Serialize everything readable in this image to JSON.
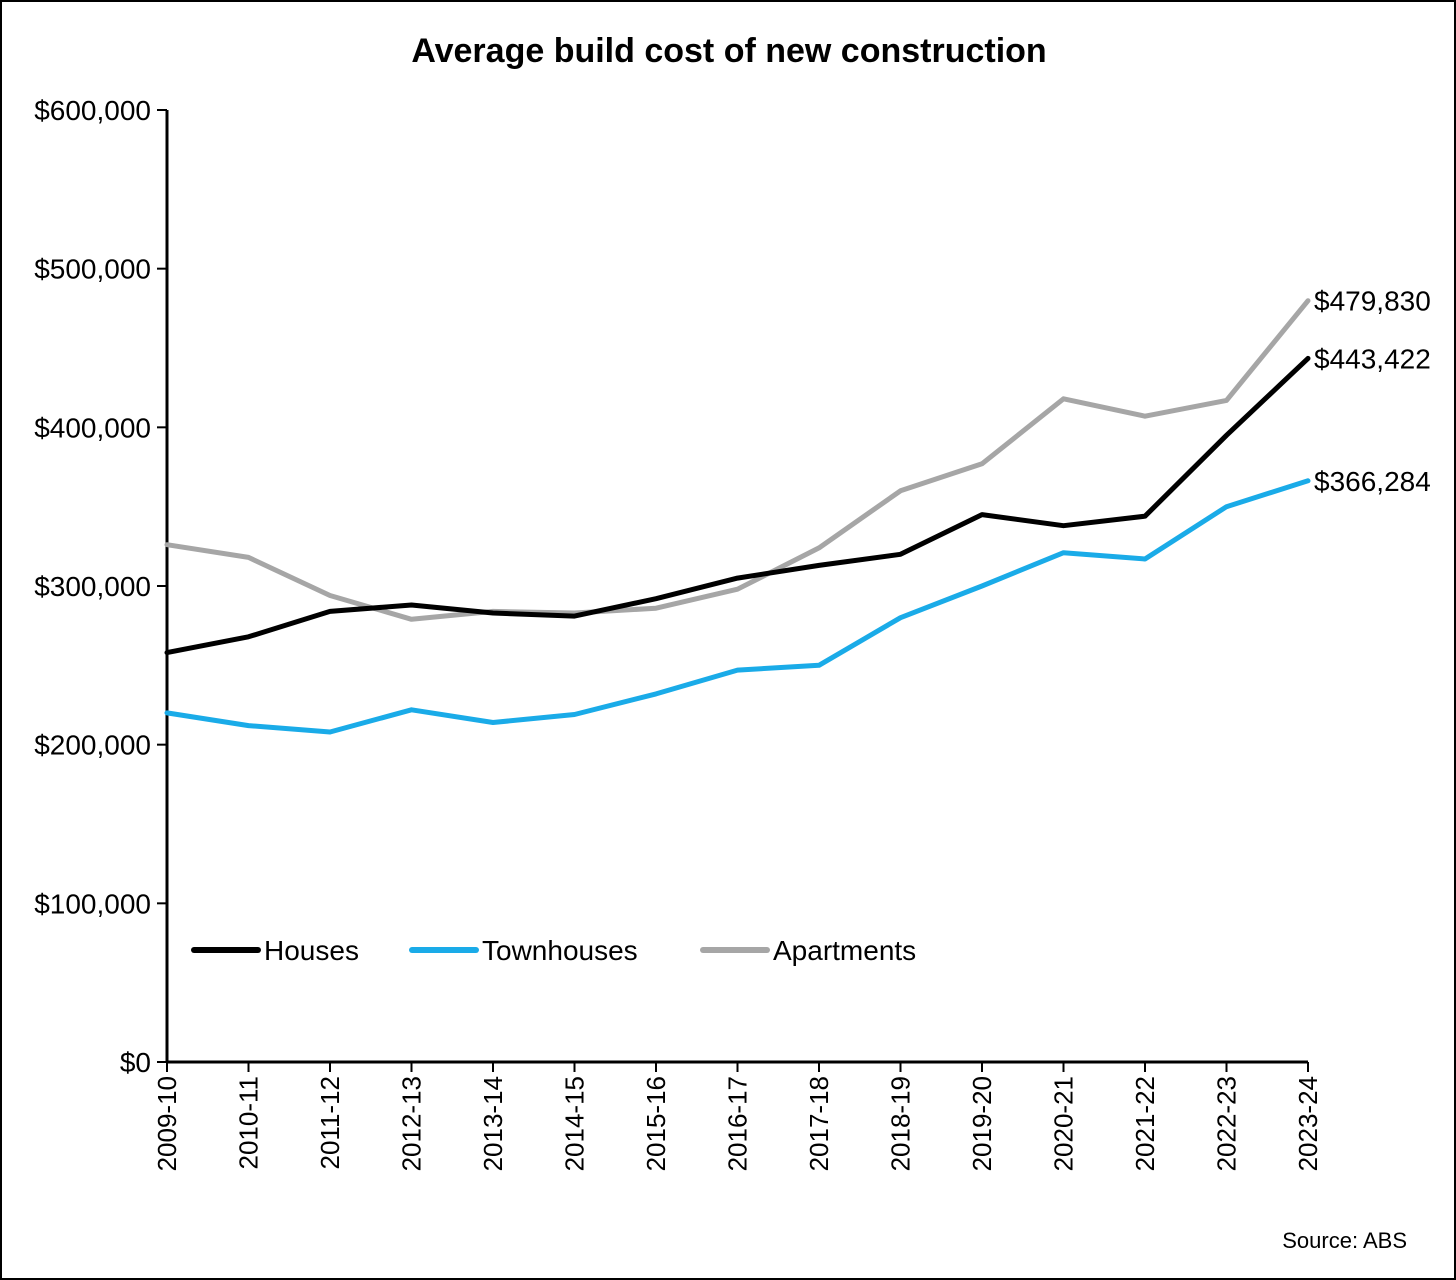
{
  "chart_data": {
    "type": "line",
    "title": "Average build cost of new construction",
    "source": "Source: ABS",
    "categories": [
      "2009-10",
      "2010-11",
      "2011-12",
      "2012-13",
      "2013-14",
      "2014-15",
      "2015-16",
      "2016-17",
      "2017-18",
      "2018-19",
      "2019-20",
      "2020-21",
      "2021-22",
      "2022-23",
      "2023-24"
    ],
    "ylim": [
      0,
      600000
    ],
    "yticks": [
      0,
      100000,
      200000,
      300000,
      400000,
      500000,
      600000
    ],
    "ytick_labels": [
      "$0",
      "$100,000",
      "$200,000",
      "$300,000",
      "$400,000",
      "$500,000",
      "$600,000"
    ],
    "legend_position": "bottom-left",
    "grid": false,
    "series": [
      {
        "name": "Houses",
        "color": "#000000",
        "values": [
          258000,
          268000,
          284000,
          288000,
          283000,
          281000,
          292000,
          305000,
          313000,
          320000,
          345000,
          338000,
          344000,
          395000,
          443422
        ],
        "end_label": "$443,422"
      },
      {
        "name": "Townhouses",
        "color": "#1aabe8",
        "values": [
          220000,
          212000,
          208000,
          222000,
          214000,
          219000,
          232000,
          247000,
          250000,
          280000,
          300000,
          321000,
          317000,
          350000,
          366284
        ],
        "end_label": "$366,284"
      },
      {
        "name": "Apartments",
        "color": "#a6a6a6",
        "values": [
          326000,
          318000,
          294000,
          279000,
          284000,
          283000,
          286000,
          298000,
          324000,
          360000,
          377000,
          418000,
          407000,
          417000,
          479830
        ],
        "end_label": "$479,830"
      }
    ]
  }
}
